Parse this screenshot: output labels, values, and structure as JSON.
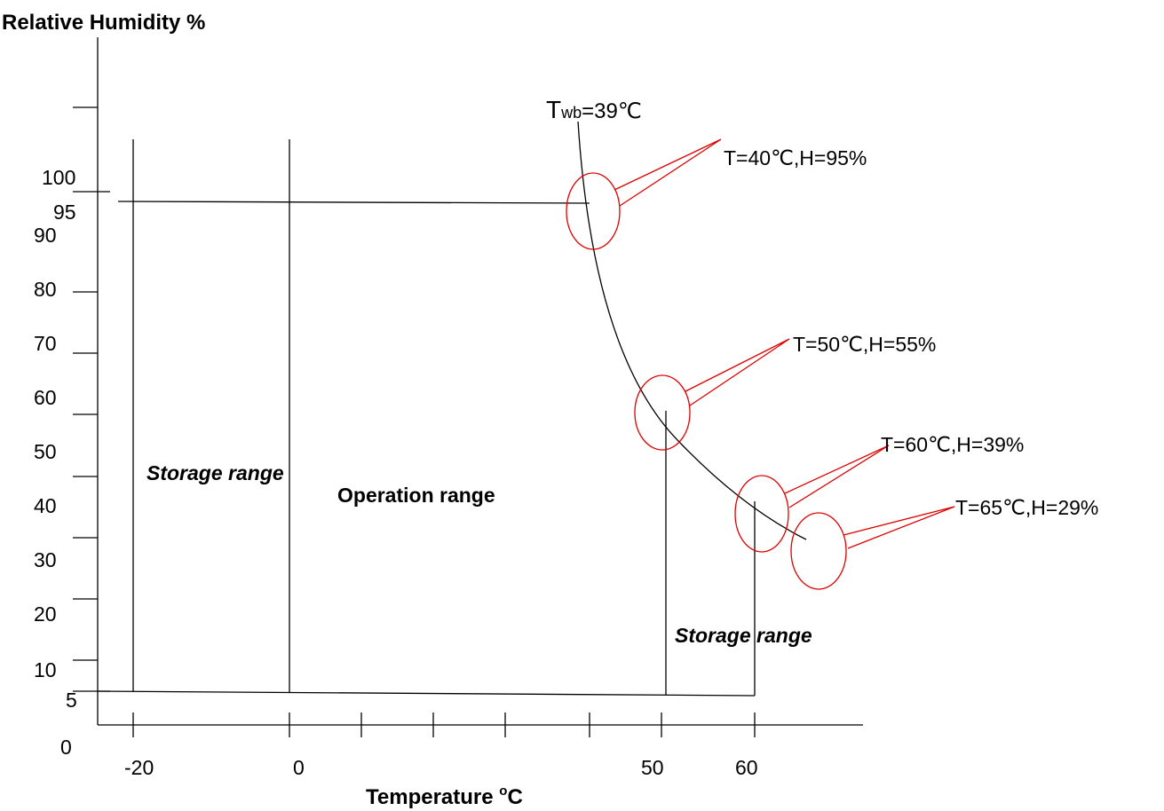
{
  "colors": {
    "line": "#000000",
    "annotation": "#e00000",
    "background": "#ffffff"
  },
  "chart_data": {
    "type": "line",
    "title": "",
    "ylabel": "Relative Humidity %",
    "xlabel": "Temperature",
    "xlabel_unit": "°C",
    "xlabel_sup": "o",
    "xlabel_suffix": "C",
    "x_tick_labels": [
      "-20",
      "0",
      "50",
      "60"
    ],
    "y_tick_labels": [
      "0",
      "5",
      "10",
      "20",
      "30",
      "40",
      "50",
      "60",
      "70",
      "80",
      "90",
      "95",
      "100"
    ],
    "ylim": [
      0,
      100
    ],
    "grid": false,
    "boundary": {
      "name": "Operation range",
      "points": [
        [
          -20,
          95
        ],
        [
          40,
          95
        ],
        [
          50,
          55
        ],
        [
          60,
          39
        ],
        [
          65,
          29
        ]
      ],
      "lower_humidity": 5
    },
    "vertical_lines": [
      -20,
      0,
      50,
      60
    ],
    "curve_label": {
      "main": "T",
      "subscript": "wb",
      "value": "=39℃"
    },
    "regions": {
      "storage_left": "Storage range",
      "operation": "Operation range",
      "storage_right": "Storage range"
    },
    "annotations": [
      {
        "text": "T=40℃,H=95%",
        "temperature": 40,
        "humidity": 95
      },
      {
        "text": "T=50℃,H=55%",
        "temperature": 50,
        "humidity": 55
      },
      {
        "text": "T=60℃,H=39%",
        "temperature": 60,
        "humidity": 39
      },
      {
        "text": "T=65℃,H=29%",
        "temperature": 65,
        "humidity": 29
      }
    ]
  }
}
